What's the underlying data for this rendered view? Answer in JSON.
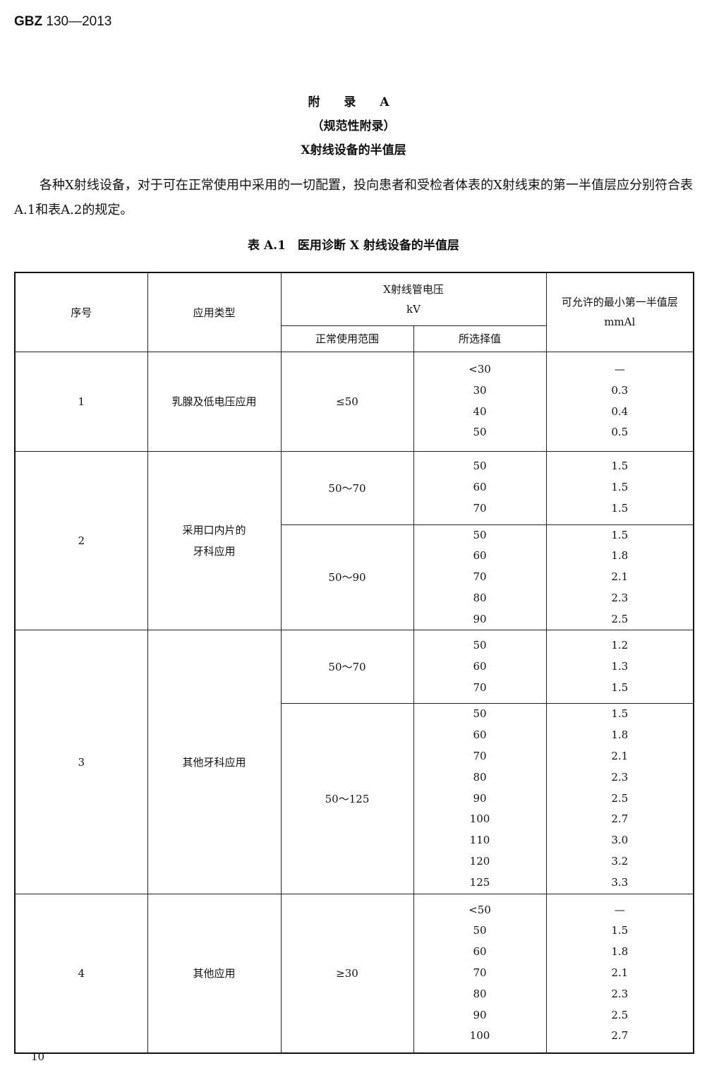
{
  "header": {
    "std_code": "GBZ",
    "std_number": "130—2013"
  },
  "appendix": {
    "title": "附 录 A",
    "type": "（规范性附录）",
    "subtitle": "X射线设备的半值层"
  },
  "paragraph": "各种X射线设备，对于可在正常使用中采用的一切配置，投向患者和受检者体表的X射线束的第一半值层应分别符合表A.1和表A.2的规定。",
  "table": {
    "caption": "表 A.1　医用诊断 X 射线设备的半值层",
    "headers": {
      "seq": "序号",
      "app": "应用类型",
      "voltage": "X射线管电压",
      "voltage_unit": "kV",
      "range": "正常使用范围",
      "selected": "所选择值",
      "hvl": "可允许的最小第一半值层",
      "hvl_unit": "mmAl"
    },
    "groups": [
      {
        "seq": "1",
        "app": "乳腺及低电压应用",
        "sub": [
          {
            "range": "≤50",
            "values": [
              "<30",
              "30",
              "40",
              "50"
            ],
            "hvl": [
              "—",
              "0.3",
              "0.4",
              "0.5"
            ]
          }
        ]
      },
      {
        "seq": "2",
        "app": "采用口内片的\n牙科应用",
        "sub": [
          {
            "range": "50～70",
            "values": [
              "50",
              "60",
              "70"
            ],
            "hvl": [
              "1.5",
              "1.5",
              "1.5"
            ]
          },
          {
            "range": "50～90",
            "values": [
              "50",
              "60",
              "70",
              "80",
              "90"
            ],
            "hvl": [
              "1.5",
              "1.8",
              "2.1",
              "2.3",
              "2.5"
            ]
          }
        ]
      },
      {
        "seq": "3",
        "app": "其他牙科应用",
        "sub": [
          {
            "range": "50～70",
            "values": [
              "50",
              "60",
              "70"
            ],
            "hvl": [
              "1.2",
              "1.3",
              "1.5"
            ]
          },
          {
            "range": "50～125",
            "values": [
              "50",
              "60",
              "70",
              "80",
              "90",
              "100",
              "110",
              "120",
              "125"
            ],
            "hvl": [
              "1.5",
              "1.8",
              "2.1",
              "2.3",
              "2.5",
              "2.7",
              "3.0",
              "3.2",
              "3.3"
            ]
          }
        ]
      },
      {
        "seq": "4",
        "app": "其他应用",
        "sub": [
          {
            "range": "≥30",
            "values": [
              "<50",
              "50",
              "60",
              "70",
              "80",
              "90",
              "100"
            ],
            "hvl": [
              "—",
              "1.5",
              "1.8",
              "2.1",
              "2.3",
              "2.5",
              "2.7"
            ]
          }
        ]
      }
    ]
  },
  "footer": {
    "page_number": "10"
  }
}
